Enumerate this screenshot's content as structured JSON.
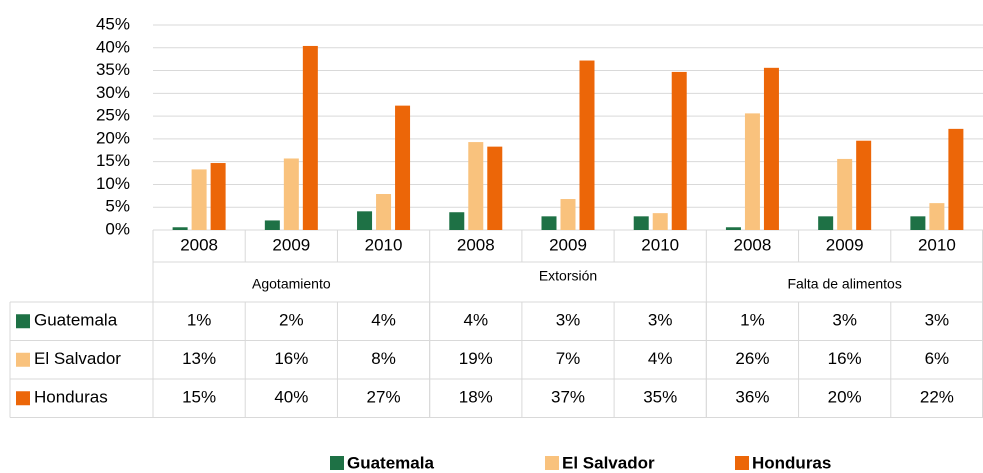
{
  "chart_data": {
    "type": "bar",
    "categories": [
      "2008",
      "2009",
      "2010",
      "2008",
      "2009",
      "2010",
      "2008",
      "2009",
      "2010"
    ],
    "groups": [
      "Agotamiento",
      "Extorsión",
      "Falta de alimentos"
    ],
    "series": [
      {
        "name": "Guatemala",
        "color": "#1e7145",
        "values": [
          0.6,
          2.1,
          4.1,
          3.9,
          3,
          3,
          0.6,
          3,
          3
        ],
        "value_labels": [
          "1%",
          "2%",
          "4%",
          "4%",
          "3%",
          "3%",
          "1%",
          "3%",
          "3%"
        ]
      },
      {
        "name": "El Salvador",
        "color": "#f9c27d",
        "values": [
          13.3,
          15.7,
          7.9,
          19.3,
          6.8,
          3.7,
          25.6,
          15.6,
          5.9
        ],
        "value_labels": [
          "13%",
          "16%",
          "8%",
          "19%",
          "7%",
          "4%",
          "26%",
          "16%",
          "6%"
        ]
      },
      {
        "name": "Honduras",
        "color": "#ec6608",
        "values": [
          14.7,
          40.4,
          27.3,
          18.3,
          37.2,
          34.7,
          35.6,
          19.6,
          22.2
        ],
        "value_labels": [
          "15%",
          "40%",
          "27%",
          "18%",
          "37%",
          "35%",
          "36%",
          "20%",
          "22%"
        ]
      }
    ],
    "ylim": [
      0,
      45
    ],
    "yticks": [
      {
        "value": 0,
        "label": "0%"
      },
      {
        "value": 5,
        "label": "5%"
      },
      {
        "value": 10,
        "label": "10%"
      },
      {
        "value": 15,
        "label": "15%"
      },
      {
        "value": 20,
        "label": "20%"
      },
      {
        "value": 25,
        "label": "25%"
      },
      {
        "value": 30,
        "label": "30%"
      },
      {
        "value": 35,
        "label": "35%"
      },
      {
        "value": 40,
        "label": "40%"
      },
      {
        "value": 45,
        "label": "45%"
      }
    ],
    "grid": true,
    "legend": "bottom"
  }
}
